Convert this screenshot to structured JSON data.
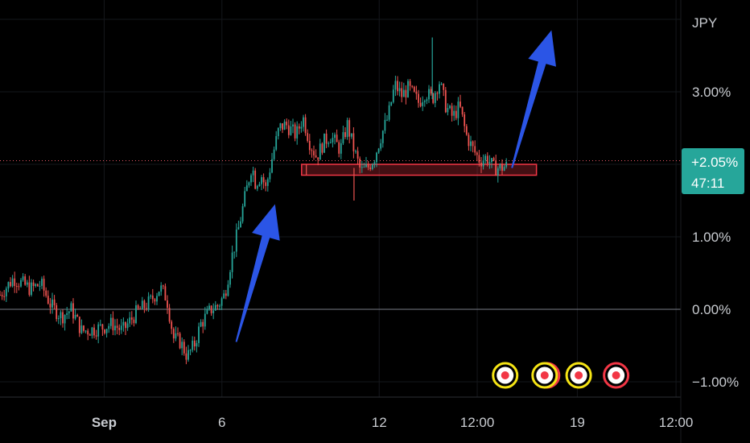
{
  "chart_data": {
    "type": "candlestick",
    "currency_label": "JPY",
    "y_unit": "percent",
    "y_ticks": [
      {
        "value": 3,
        "label": "3.00%"
      },
      {
        "value": 1,
        "label": "1.00%"
      },
      {
        "value": 0,
        "label": "0.00%"
      },
      {
        "value": -1,
        "label": "−1.00%"
      }
    ],
    "ylim": [
      -1.2,
      4.1
    ],
    "x_labels": [
      {
        "label": "Sep",
        "bold": true,
        "pos": 0.153
      },
      {
        "label": "6",
        "bold": false,
        "pos": 0.326
      },
      {
        "label": "12",
        "bold": false,
        "pos": 0.557
      },
      {
        "label": "12:00",
        "bold": false,
        "pos": 0.701
      },
      {
        "label": "19",
        "bold": false,
        "pos": 0.848
      },
      {
        "label": "12:00",
        "bold": false,
        "pos": 0.993
      }
    ],
    "baseline_value": 0,
    "current": {
      "value": 2.05,
      "change_label": "+2.05%",
      "countdown_label": "47:11"
    },
    "support_zone": {
      "low": 1.85,
      "high": 2.0,
      "x_from": 0.443,
      "x_to": 0.788
    },
    "up_arrows": [
      {
        "from": [
          0.347,
          -0.45
        ],
        "to": [
          0.404,
          1.45
        ]
      },
      {
        "from": [
          0.752,
          1.95
        ],
        "to": [
          0.81,
          3.85
        ]
      }
    ],
    "event_markers": [
      {
        "pos": 0.742,
        "style": "yellow"
      },
      {
        "pos": 0.8,
        "style": "mixed"
      },
      {
        "pos": 0.85,
        "style": "yellow"
      },
      {
        "pos": 0.905,
        "style": "red"
      }
    ],
    "path_points": [
      [
        0,
        0.2
      ],
      [
        0.02,
        0.43
      ],
      [
        0.045,
        0.28
      ],
      [
        0.06,
        0.35
      ],
      [
        0.075,
        0.05
      ],
      [
        0.09,
        -0.1
      ],
      [
        0.105,
        0.0
      ],
      [
        0.12,
        -0.3
      ],
      [
        0.135,
        -0.28
      ],
      [
        0.15,
        -0.25
      ],
      [
        0.165,
        -0.2
      ],
      [
        0.18,
        -0.3
      ],
      [
        0.2,
        -0.05
      ],
      [
        0.22,
        0.1
      ],
      [
        0.235,
        0.3
      ],
      [
        0.245,
        0.15
      ],
      [
        0.255,
        -0.4
      ],
      [
        0.265,
        -0.45
      ],
      [
        0.275,
        -0.65
      ],
      [
        0.285,
        -0.5
      ],
      [
        0.295,
        -0.2
      ],
      [
        0.31,
        0.0
      ],
      [
        0.32,
        0.05
      ],
      [
        0.33,
        0.2
      ],
      [
        0.34,
        0.7
      ],
      [
        0.35,
        1.1
      ],
      [
        0.36,
        1.55
      ],
      [
        0.37,
        2.0
      ],
      [
        0.375,
        1.75
      ],
      [
        0.385,
        1.85
      ],
      [
        0.39,
        1.65
      ],
      [
        0.4,
        2.1
      ],
      [
        0.41,
        2.5
      ],
      [
        0.42,
        2.55
      ],
      [
        0.435,
        2.4
      ],
      [
        0.445,
        2.65
      ],
      [
        0.455,
        2.3
      ],
      [
        0.465,
        2.1
      ],
      [
        0.475,
        2.3
      ],
      [
        0.485,
        2.4
      ],
      [
        0.5,
        2.2
      ],
      [
        0.51,
        2.55
      ],
      [
        0.52,
        2.2
      ],
      [
        0.53,
        1.9
      ],
      [
        0.54,
        1.95
      ],
      [
        0.55,
        2.1
      ],
      [
        0.56,
        2.4
      ],
      [
        0.57,
        2.65
      ],
      [
        0.58,
        3.1
      ],
      [
        0.59,
        2.95
      ],
      [
        0.6,
        3.05
      ],
      [
        0.615,
        2.85
      ],
      [
        0.625,
        3.0
      ],
      [
        0.635,
        2.9
      ],
      [
        0.645,
        3.15
      ],
      [
        0.655,
        2.8
      ],
      [
        0.665,
        2.65
      ],
      [
        0.675,
        2.8
      ],
      [
        0.685,
        2.4
      ],
      [
        0.695,
        2.2
      ],
      [
        0.705,
        2.05
      ],
      [
        0.715,
        2.1
      ],
      [
        0.725,
        1.95
      ],
      [
        0.735,
        1.95
      ],
      [
        0.745,
        1.98
      ]
    ]
  }
}
